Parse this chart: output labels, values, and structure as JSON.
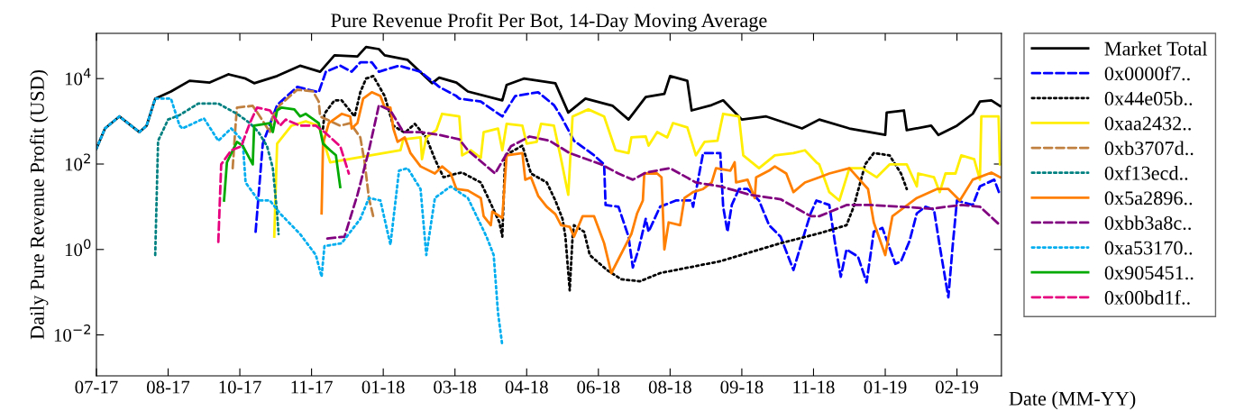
{
  "chart_data": {
    "type": "line",
    "title": "Pure Revenue Profit Per Bot, 14-Day Moving Average",
    "xlabel": "Date (MM-YY)",
    "ylabel": "Daily Pure Revenue Profit (USD)",
    "log": "y",
    "grid": false,
    "legend": "right",
    "marker": "none",
    "xlim": [
      "2017-07-01",
      "2019-03-24"
    ],
    "ylim": [
      0.0011,
      115000
    ],
    "xticks": [
      {
        "value": "2017-07-01",
        "label": "07-17"
      },
      {
        "value": "2017-08-20",
        "label": "08-17"
      },
      {
        "value": "2017-10-09",
        "label": "10-17"
      },
      {
        "value": "2017-11-28",
        "label": "11-17"
      },
      {
        "value": "2018-01-17",
        "label": "01-18"
      },
      {
        "value": "2018-03-08",
        "label": "03-18"
      },
      {
        "value": "2018-04-27",
        "label": "04-18"
      },
      {
        "value": "2018-06-16",
        "label": "06-18"
      },
      {
        "value": "2018-08-05",
        "label": "08-18"
      },
      {
        "value": "2018-09-24",
        "label": "09-18"
      },
      {
        "value": "2018-11-13",
        "label": "11-18"
      },
      {
        "value": "2019-01-02",
        "label": "01-19"
      },
      {
        "value": "2019-02-21",
        "label": "02-19"
      }
    ],
    "yticks": [
      {
        "value": 0.01,
        "label": "10$^{−2}$"
      },
      {
        "value": 1,
        "label": "10$^{0}$"
      },
      {
        "value": 100,
        "label": "10$^{2}$"
      },
      {
        "value": 10000,
        "label": "10$^{4}$"
      }
    ],
    "series": [
      {
        "name": "Market Total",
        "color": "#000000",
        "line_style": "solid",
        "x": [
          "2017-07-01",
          "2017-07-07",
          "2017-07-17",
          "2017-07-31",
          "2017-08-05",
          "2017-08-11",
          "2017-08-22",
          "2017-09-04",
          "2017-09-18",
          "2017-10-01",
          "2017-10-13",
          "2017-10-19",
          "2017-11-04",
          "2017-11-20",
          "2017-12-04",
          "2017-12-14",
          "2017-12-30",
          "2018-01-05",
          "2018-01-14",
          "2018-01-18",
          "2018-02-03",
          "2018-02-20",
          "2018-02-25",
          "2018-03-09",
          "2018-03-17",
          "2018-04-10",
          "2018-04-13",
          "2018-04-25",
          "2018-05-17",
          "2018-05-26",
          "2018-06-07",
          "2018-06-26",
          "2018-07-07",
          "2018-07-19",
          "2018-08-01",
          "2018-08-05",
          "2018-08-17",
          "2018-08-20",
          "2018-09-03",
          "2018-09-11",
          "2018-09-24",
          "2018-10-11",
          "2018-11-05",
          "2018-11-17",
          "2018-12-08",
          "2019-01-02",
          "2019-01-03",
          "2019-01-15",
          "2019-01-17",
          "2019-02-03",
          "2019-02-08",
          "2019-02-21",
          "2019-03-04",
          "2019-03-09",
          "2019-03-17",
          "2019-03-23"
        ],
        "values": [
          230,
          680,
          1300,
          560,
          790,
          3400,
          5000,
          8900,
          8100,
          12600,
          10000,
          7800,
          11500,
          20000,
          14500,
          35000,
          33000,
          55000,
          49000,
          35000,
          27500,
          7800,
          10500,
          8100,
          5000,
          3100,
          7100,
          10000,
          7800,
          1600,
          3400,
          2300,
          1100,
          3700,
          4400,
          11500,
          8900,
          1800,
          2400,
          3100,
          1100,
          1300,
          680,
          1100,
          680,
          480,
          1600,
          1800,
          620,
          790,
          480,
          790,
          1500,
          2900,
          3100,
          2300
        ]
      },
      {
        "name": "0x0000f7..",
        "color": "#0000ff",
        "line_style": "dashed",
        "x": [
          "2017-10-20",
          "2017-10-25",
          "2017-11-04",
          "2017-11-18",
          "2017-12-03",
          "2017-12-08",
          "2017-12-18",
          "2017-12-26",
          "2018-01-01",
          "2018-01-09",
          "2018-01-14",
          "2018-01-28",
          "2018-02-12",
          "2018-02-25",
          "2018-03-09",
          "2018-03-11",
          "2018-03-26",
          "2018-04-10",
          "2018-04-19",
          "2018-05-05",
          "2018-05-16",
          "2018-05-21",
          "2018-05-30",
          "2018-06-13",
          "2018-06-20",
          "2018-06-21",
          "2018-06-30",
          "2018-07-07",
          "2018-07-10",
          "2018-07-14",
          "2018-07-19",
          "2018-07-21",
          "2018-07-29",
          "2018-08-09",
          "2018-08-20",
          "2018-08-21",
          "2018-08-28",
          "2018-09-09",
          "2018-09-11",
          "2018-09-14",
          "2018-09-17",
          "2018-09-22",
          "2018-09-28",
          "2018-10-06",
          "2018-10-13",
          "2018-10-21",
          "2018-10-30",
          "2018-11-07",
          "2018-11-11",
          "2018-11-15",
          "2018-11-24",
          "2018-11-28",
          "2018-12-02",
          "2018-12-06",
          "2018-12-14",
          "2018-12-20",
          "2018-12-25",
          "2018-12-31",
          "2019-01-09",
          "2019-01-13",
          "2019-01-19",
          "2019-01-24",
          "2019-01-30",
          "2019-02-05",
          "2019-02-09",
          "2019-02-15",
          "2019-02-18",
          "2019-02-21",
          "2019-03-04",
          "2019-03-09",
          "2019-03-19",
          "2019-03-23"
        ],
        "values": [
          2.6,
          300,
          2400,
          6400,
          4800,
          14500,
          20000,
          14500,
          24000,
          24000,
          14500,
          20000,
          14500,
          6400,
          3900,
          3400,
          2900,
          1300,
          3900,
          4800,
          2400,
          1300,
          350,
          160,
          98,
          11,
          10,
          2,
          0.38,
          1,
          5.2,
          2.6,
          10,
          14,
          14,
          10,
          180,
          180,
          10,
          2.6,
          11,
          26,
          26,
          14,
          3.7,
          2,
          0.33,
          2.6,
          7,
          14,
          11,
          1.4,
          0.23,
          1,
          0.68,
          0.17,
          2.6,
          3.2,
          0.46,
          0.53,
          1.6,
          7,
          10,
          8.5,
          1.2,
          0.076,
          1.2,
          14,
          11,
          30,
          43,
          19
        ]
      },
      {
        "name": "0x44e05b..",
        "color": "#000000",
        "line_style": "dotted",
        "x": [
          "2017-12-06",
          "2017-12-07",
          "2017-12-14",
          "2017-12-19",
          "2017-12-28",
          "2018-01-01",
          "2018-01-05",
          "2018-01-10",
          "2018-01-18",
          "2018-01-24",
          "2018-02-01",
          "2018-02-08",
          "2018-02-16",
          "2018-02-22",
          "2018-02-28",
          "2018-03-09",
          "2018-03-13",
          "2018-03-26",
          "2018-04-01",
          "2018-04-08",
          "2018-04-10",
          "2018-04-12",
          "2018-04-24",
          "2018-04-30",
          "2018-05-11",
          "2018-05-17",
          "2018-05-22",
          "2018-05-24",
          "2018-05-27",
          "2018-05-29",
          "2018-05-30",
          "2018-06-06",
          "2018-06-10",
          "2018-06-22",
          "2018-07-02",
          "2018-07-15",
          "2018-07-29",
          "2018-09-09",
          "2018-10-21",
          "2018-11-15",
          "2018-11-19",
          "2018-12-06",
          "2018-12-11",
          "2018-12-19",
          "2018-12-25",
          "2019-01-05",
          "2019-01-13",
          "2019-01-17"
        ],
        "values": [
          680,
          1500,
          3100,
          3100,
          1300,
          4800,
          10000,
          11500,
          3900,
          790,
          540,
          870,
          420,
          130,
          49,
          60,
          63,
          37,
          14,
          4.3,
          2,
          160,
          270,
          60,
          37,
          14,
          5.2,
          2,
          0.11,
          2,
          3.7,
          2.6,
          0.74,
          0.33,
          0.2,
          0.18,
          0.28,
          0.53,
          1.4,
          2.3,
          2.5,
          3.7,
          10,
          98,
          180,
          160,
          60,
          26
        ]
      },
      {
        "name": "0xaa2432..",
        "color": "#ffee00",
        "line_style": "solid",
        "x": [
          "2017-11-02",
          "2017-11-04",
          "2017-11-14",
          "2017-11-24",
          "2017-12-03",
          "2017-12-11",
          "2018-01-29",
          "2018-01-31",
          "2018-02-12",
          "2018-02-13",
          "2018-02-16",
          "2018-02-23",
          "2018-02-27",
          "2018-03-11",
          "2018-03-13",
          "2018-03-19",
          "2018-03-26",
          "2018-03-28",
          "2018-04-07",
          "2018-04-10",
          "2018-04-13",
          "2018-04-24",
          "2018-04-27",
          "2018-05-04",
          "2018-05-07",
          "2018-05-16",
          "2018-05-21",
          "2018-05-26",
          "2018-05-29",
          "2018-06-09",
          "2018-06-20",
          "2018-06-28",
          "2018-07-07",
          "2018-07-09",
          "2018-07-19",
          "2018-07-21",
          "2018-07-27",
          "2018-08-03",
          "2018-08-07",
          "2018-08-17",
          "2018-08-23",
          "2018-08-29",
          "2018-09-07",
          "2018-09-11",
          "2018-09-22",
          "2018-09-25",
          "2018-10-06",
          "2018-10-17",
          "2018-10-30",
          "2018-11-07",
          "2018-11-15",
          "2018-11-17",
          "2018-11-24",
          "2018-12-01",
          "2018-12-08",
          "2018-12-17",
          "2018-12-27",
          "2019-01-05",
          "2019-01-17",
          "2019-01-24",
          "2019-01-25",
          "2019-02-05",
          "2019-02-09",
          "2019-02-13",
          "2019-02-20",
          "2019-02-24",
          "2019-03-05",
          "2019-03-09",
          "2019-03-10",
          "2019-03-22",
          "2019-03-23"
        ],
        "values": [
          2,
          300,
          790,
          1000,
          790,
          110,
          210,
          380,
          420,
          130,
          420,
          620,
          1500,
          1300,
          160,
          210,
          140,
          560,
          680,
          210,
          870,
          790,
          300,
          330,
          870,
          790,
          130,
          19,
          1300,
          1900,
          1300,
          210,
          180,
          420,
          440,
          270,
          560,
          420,
          910,
          720,
          160,
          330,
          350,
          1500,
          1300,
          160,
          80,
          160,
          180,
          210,
          110,
          98,
          22,
          14,
          80,
          80,
          49,
          98,
          98,
          30,
          60,
          49,
          22,
          60,
          60,
          160,
          130,
          43,
          1300,
          1300,
          98
        ]
      },
      {
        "name": "0xb3707d..",
        "color": "#bf8040",
        "line_style": "dashed",
        "x": [
          "2017-10-04",
          "2017-10-06",
          "2017-10-07",
          "2017-10-18",
          "2017-10-23",
          "2017-10-30",
          "2017-11-01",
          "2017-11-06",
          "2017-11-18",
          "2017-11-29",
          "2017-12-03",
          "2017-12-04",
          "2017-12-18",
          "2017-12-25",
          "2018-01-01",
          "2018-01-04",
          "2018-01-07",
          "2018-01-10"
        ],
        "values": [
          80,
          790,
          2100,
          2300,
          1300,
          560,
          1300,
          2400,
          5500,
          5000,
          2900,
          1300,
          790,
          910,
          420,
          110,
          16,
          6
        ]
      },
      {
        "name": "0xf13ecd..",
        "color": "#008080",
        "line_style": "dotted",
        "x": [
          "2017-08-11",
          "2017-08-13",
          "2017-08-20",
          "2017-08-28",
          "2017-09-10",
          "2017-09-24",
          "2017-10-07",
          "2017-10-16",
          "2017-10-22",
          "2017-10-28",
          "2017-11-01",
          "2017-11-04",
          "2017-11-05"
        ],
        "values": [
          0.74,
          350,
          1100,
          1400,
          2600,
          2600,
          1500,
          910,
          560,
          260,
          80,
          7,
          2.3
        ]
      },
      {
        "name": "0x5a2896..",
        "color": "#ff8000",
        "line_style": "solid",
        "x": [
          "2017-12-05",
          "2017-12-06",
          "2017-12-10",
          "2017-12-19",
          "2017-12-25",
          "2017-12-26",
          "2017-12-30",
          "2018-01-03",
          "2018-01-09",
          "2018-01-15",
          "2018-01-18",
          "2018-01-22",
          "2018-01-24",
          "2018-01-27",
          "2018-02-01",
          "2018-02-05",
          "2018-02-12",
          "2018-02-22",
          "2018-02-27",
          "2018-03-05",
          "2018-03-09",
          "2018-03-17",
          "2018-03-26",
          "2018-03-28",
          "2018-04-02",
          "2018-04-03",
          "2018-04-10",
          "2018-04-13",
          "2018-04-24",
          "2018-04-26",
          "2018-04-30",
          "2018-05-05",
          "2018-05-11",
          "2018-05-17",
          "2018-05-21",
          "2018-05-27",
          "2018-05-30",
          "2018-06-05",
          "2018-06-13",
          "2018-06-20",
          "2018-06-25",
          "2018-07-09",
          "2018-07-13",
          "2018-07-17",
          "2018-07-18",
          "2018-07-27",
          "2018-07-30",
          "2018-08-01",
          "2018-08-04",
          "2018-08-12",
          "2018-08-15",
          "2018-08-21",
          "2018-08-28",
          "2018-09-03",
          "2018-09-06",
          "2018-09-16",
          "2018-09-19",
          "2018-09-20",
          "2018-09-28",
          "2018-10-03",
          "2018-10-04",
          "2018-10-13",
          "2018-10-17",
          "2018-10-25",
          "2018-10-30",
          "2018-11-07",
          "2018-11-17",
          "2018-11-24",
          "2018-12-08",
          "2018-12-21",
          "2018-12-25",
          "2019-01-02",
          "2019-01-07",
          "2019-01-13",
          "2019-01-24",
          "2019-02-07",
          "2019-02-15",
          "2019-02-23",
          "2019-03-04",
          "2019-03-17",
          "2019-03-23"
        ],
        "values": [
          7,
          300,
          910,
          1500,
          1300,
          680,
          910,
          3400,
          4800,
          3900,
          2100,
          2100,
          680,
          330,
          420,
          180,
          88,
          60,
          88,
          60,
          26,
          24,
          16,
          6,
          3.7,
          7.7,
          5.5,
          160,
          180,
          43,
          49,
          18,
          10,
          6.7,
          3.7,
          3.4,
          2,
          6,
          6,
          1.4,
          0.28,
          2.3,
          7,
          14,
          60,
          60,
          49,
          1,
          4.3,
          3.7,
          16,
          22,
          26,
          37,
          80,
          70,
          110,
          37,
          43,
          16,
          49,
          70,
          88,
          60,
          22,
          37,
          49,
          60,
          80,
          26,
          4.3,
          0.74,
          6,
          8.5,
          16,
          26,
          26,
          14,
          43,
          63,
          49
        ]
      },
      {
        "name": "0xbb3a8c..",
        "color": "#800080",
        "line_style": "dashed",
        "x": [
          "2017-12-09",
          "2017-12-21",
          "2017-12-30",
          "2018-01-07",
          "2018-01-14",
          "2018-01-22",
          "2018-01-31",
          "2018-02-12",
          "2018-02-25",
          "2018-03-11",
          "2018-03-17",
          "2018-04-05",
          "2018-04-16",
          "2018-04-29",
          "2018-05-13",
          "2018-05-27",
          "2018-06-18",
          "2018-06-30",
          "2018-07-10",
          "2018-07-19",
          "2018-08-05",
          "2018-08-23",
          "2018-09-09",
          "2018-09-30",
          "2018-10-21",
          "2018-11-11",
          "2018-11-17",
          "2018-12-06",
          "2018-12-23",
          "2019-01-13",
          "2019-02-03",
          "2019-02-24",
          "2019-03-09",
          "2019-03-23"
        ],
        "values": [
          1.8,
          2,
          19,
          210,
          2400,
          1800,
          560,
          560,
          480,
          380,
          210,
          60,
          260,
          440,
          350,
          180,
          98,
          60,
          43,
          63,
          80,
          37,
          30,
          19,
          15,
          6,
          6,
          11,
          11,
          10,
          9,
          11,
          10,
          3.7
        ]
      },
      {
        "name": "0xa53170..",
        "color": "#00aeef",
        "line_style": "dotted",
        "x": [
          "2017-07-01",
          "2017-07-07",
          "2017-07-17",
          "2017-07-31",
          "2017-08-05",
          "2017-08-11",
          "2017-08-22",
          "2017-08-28",
          "2017-08-30",
          "2017-09-14",
          "2017-09-24",
          "2017-10-03",
          "2017-10-11",
          "2017-10-13",
          "2017-10-22",
          "2017-10-30",
          "2017-11-06",
          "2017-11-20",
          "2017-12-01",
          "2017-12-05",
          "2017-12-07",
          "2017-12-19",
          "2018-01-01",
          "2018-01-07",
          "2018-01-15",
          "2018-01-22",
          "2018-01-28",
          "2018-02-03",
          "2018-02-12",
          "2018-02-16",
          "2018-02-22",
          "2018-03-05",
          "2018-03-17",
          "2018-03-30",
          "2018-04-04",
          "2018-04-07",
          "2018-04-10"
        ],
        "values": [
          230,
          680,
          1300,
          560,
          790,
          3400,
          3400,
          790,
          680,
          1170,
          350,
          680,
          350,
          37,
          14,
          14,
          7,
          2.3,
          0.74,
          0.23,
          1.2,
          1.4,
          5.2,
          16,
          14,
          1.3,
          70,
          80,
          26,
          0.74,
          16,
          30,
          16,
          2,
          0.74,
          0.033,
          0.0057
        ]
      },
      {
        "name": "0x905451..",
        "color": "#00aa00",
        "line_style": "solid",
        "x": [
          "2017-09-28",
          "2017-09-30",
          "2017-10-07",
          "2017-10-11",
          "2017-10-18",
          "2017-10-19",
          "2017-10-30",
          "2017-11-01",
          "2017-11-04",
          "2017-11-07",
          "2017-11-16",
          "2017-11-20",
          "2017-11-24",
          "2017-12-03",
          "2017-12-06",
          "2017-12-11",
          "2017-12-15",
          "2017-12-18"
        ],
        "values": [
          14,
          110,
          330,
          270,
          98,
          790,
          910,
          560,
          1800,
          2100,
          1900,
          1300,
          1500,
          910,
          300,
          210,
          160,
          29
        ]
      },
      {
        "name": "0x00bd1f..",
        "color": "#e6007e",
        "line_style": "dashed",
        "x": [
          "2017-09-24",
          "2017-09-26",
          "2017-10-03",
          "2017-10-10",
          "2017-10-16",
          "2017-10-21",
          "2017-10-30",
          "2017-11-06",
          "2017-11-10",
          "2017-11-20",
          "2017-12-01",
          "2017-12-07",
          "2017-12-18",
          "2017-12-24"
        ],
        "values": [
          1.5,
          98,
          210,
          260,
          910,
          2100,
          1800,
          790,
          1100,
          790,
          790,
          560,
          260,
          60
        ]
      }
    ]
  }
}
